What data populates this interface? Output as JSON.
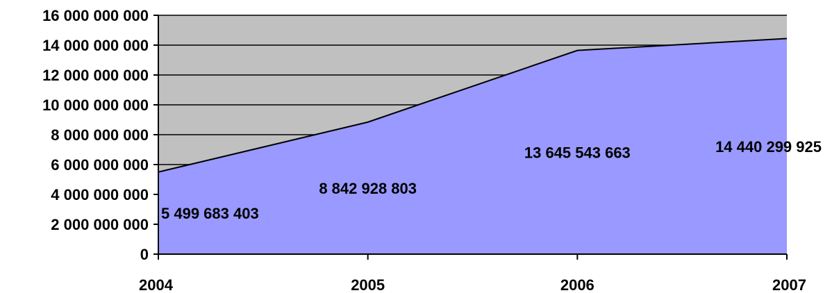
{
  "chart_data": {
    "type": "area",
    "categories": [
      "2004",
      "2005",
      "2006",
      "2007"
    ],
    "series": [
      {
        "values": [
          5499683403,
          8842928803,
          13645543663,
          14440299925
        ]
      }
    ],
    "data_labels": [
      "5 499 683 403",
      "8 842 928 803",
      "13 645 543 663",
      "14 440 299 925"
    ],
    "y_ticks": [
      0,
      2000000000,
      4000000000,
      6000000000,
      8000000000,
      10000000000,
      12000000000,
      14000000000,
      16000000000
    ],
    "y_tick_labels": [
      "0",
      "2 000 000 000",
      "4 000 000 000",
      "6 000 000 000",
      "8 000 000 000",
      "10 000 000 000",
      "12 000 000 000",
      "14 000 000 000",
      "16 000 000 000"
    ],
    "ylim": [
      0,
      16000000000
    ],
    "grid": true,
    "legend": "none",
    "colors": {
      "plot_background": "#c0c0c0",
      "area_fill": "#9999ff",
      "line": "#000000",
      "gridline": "#000000"
    }
  }
}
